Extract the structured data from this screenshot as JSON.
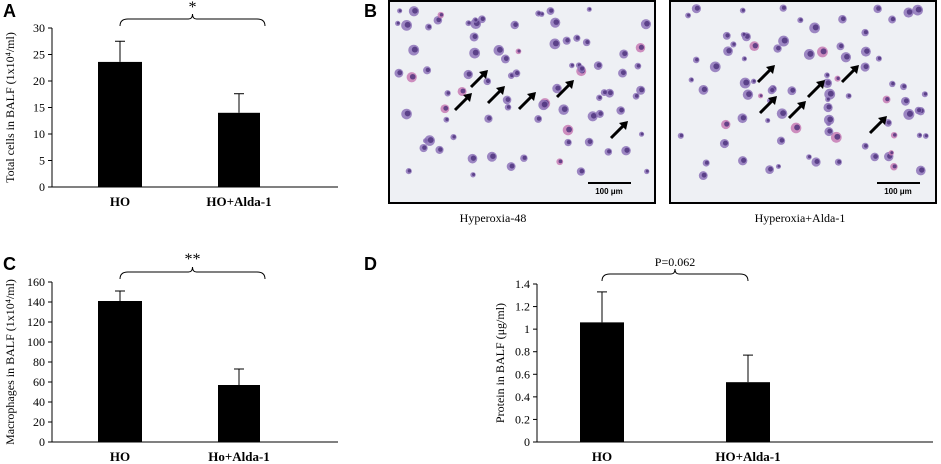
{
  "panel_labels": {
    "a": "A",
    "b": "B",
    "c": "C",
    "d": "D"
  },
  "micrographs": [
    {
      "caption": "Hyperoxia-48",
      "scale_bar": "100 μm",
      "arrows": 6
    },
    {
      "caption": "Hyperoxia+Alda-1",
      "scale_bar": "100 μm",
      "arrows": 6
    }
  ],
  "colors": {
    "bar": "#000000",
    "background_image": "#eef0f4",
    "cell": "#7b5aa8"
  },
  "chart_data": [
    {
      "type": "bar",
      "categories": [
        "HO",
        "HO+Alda-1"
      ],
      "values": [
        23.6,
        14.0
      ],
      "errors": [
        3.9,
        3.6
      ],
      "ylabel": "Total cells in BALF (1x10⁴/ml)",
      "ylim": [
        0,
        30
      ],
      "yticks": [
        "0",
        "5",
        "10",
        "15",
        "20",
        "25",
        "30"
      ],
      "significance": "*"
    },
    {
      "type": "bar",
      "categories": [
        "HO",
        "Ho+Alda-1"
      ],
      "values": [
        141,
        57
      ],
      "errors": [
        10,
        16
      ],
      "ylabel": "Macrophages in BALF (1x10⁴/ml)",
      "ylim": [
        0,
        160
      ],
      "yticks": [
        "0",
        "20",
        "40",
        "60",
        "80",
        "100",
        "120",
        "140",
        "160"
      ],
      "significance": "**"
    },
    {
      "type": "bar",
      "categories": [
        "HO",
        "HO+Alda-1"
      ],
      "values": [
        1.06,
        0.53
      ],
      "errors": [
        0.27,
        0.24
      ],
      "ylabel": "Protein in BALF (μg/ml)",
      "ylim": [
        0,
        1.4
      ],
      "yticks": [
        "0",
        "0.2",
        "0.4",
        "0.6",
        "0.8",
        "1",
        "1.2",
        "1.4"
      ],
      "significance": "P=0.062"
    }
  ]
}
